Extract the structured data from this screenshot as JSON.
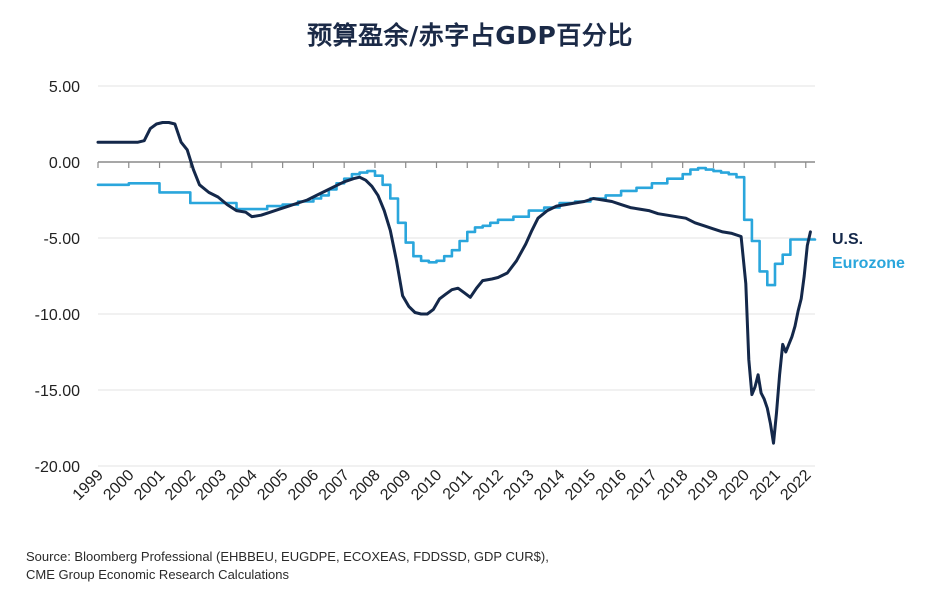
{
  "title": "预算盈余/赤字占GDP百分比",
  "source_lines": [
    "Source: Bloomberg Professional (EHBBEU, EUGDPE, ECOXEAS, FDDSSD, GDP CUR$),",
    "CME Group Economic Research Calculations"
  ],
  "colors": {
    "us": "#14284a",
    "eurozone": "#2aa6dc",
    "grid": "#e3e3e3",
    "zero_line": "#8a8a8a",
    "title": "#1b2a47"
  },
  "chart_data": {
    "type": "line",
    "title": "预算盈余/赤字占GDP百分比",
    "xlabel": "",
    "ylabel": "",
    "xlim": [
      1999,
      2022.3
    ],
    "ylim": [
      -20,
      5
    ],
    "grid": true,
    "legend": "end-of-line labels, right",
    "y_ticks": [
      5,
      0,
      -5,
      -10,
      -15,
      -20
    ],
    "y_tick_labels": [
      "5.00",
      "0.00",
      "-5.00",
      "-10.00",
      "-15.00",
      "-20.00"
    ],
    "x_ticks": [
      1999,
      2000,
      2001,
      2002,
      2003,
      2004,
      2005,
      2006,
      2007,
      2008,
      2009,
      2010,
      2011,
      2012,
      2013,
      2014,
      2015,
      2016,
      2017,
      2018,
      2019,
      2020,
      2021,
      2022
    ],
    "x_tick_labels": [
      "1999",
      "2000",
      "2001",
      "2002",
      "2003",
      "2004",
      "2005",
      "2006",
      "2007",
      "2008",
      "2009",
      "2010",
      "2011",
      "2012",
      "2013",
      "2014",
      "2015",
      "2016",
      "2017",
      "2018",
      "2019",
      "2020",
      "2021",
      "2022"
    ],
    "series": [
      {
        "name": "U.S.",
        "style": "line",
        "x": [
          1999.0,
          1999.5,
          1999.9,
          2000.1,
          2000.3,
          2000.5,
          2000.7,
          2000.9,
          2001.1,
          2001.3,
          2001.5,
          2001.7,
          2001.9,
          2002.1,
          2002.3,
          2002.6,
          2002.9,
          2003.2,
          2003.5,
          2003.8,
          2004.0,
          2004.3,
          2004.6,
          2004.9,
          2005.2,
          2005.5,
          2005.8,
          2006.1,
          2006.4,
          2006.7,
          2007.0,
          2007.3,
          2007.5,
          2007.7,
          2007.9,
          2008.1,
          2008.3,
          2008.5,
          2008.7,
          2008.9,
          2009.1,
          2009.3,
          2009.5,
          2009.7,
          2009.9,
          2010.1,
          2010.3,
          2010.5,
          2010.7,
          2010.9,
          2011.1,
          2011.3,
          2011.5,
          2011.8,
          2012.0,
          2012.3,
          2012.6,
          2012.9,
          2013.1,
          2013.3,
          2013.6,
          2013.9,
          2014.2,
          2014.5,
          2014.8,
          2015.1,
          2015.4,
          2015.7,
          2016.0,
          2016.3,
          2016.6,
          2016.9,
          2017.2,
          2017.5,
          2017.8,
          2018.1,
          2018.4,
          2018.7,
          2019.0,
          2019.3,
          2019.6,
          2019.9,
          2020.05,
          2020.15,
          2020.25,
          2020.35,
          2020.45,
          2020.55,
          2020.65,
          2020.75,
          2020.85,
          2020.95,
          2021.05,
          2021.15,
          2021.25,
          2021.35,
          2021.45,
          2021.55,
          2021.65,
          2021.75,
          2021.85,
          2021.95,
          2022.05,
          2022.15
        ],
        "values": [
          1.3,
          1.3,
          1.3,
          1.3,
          1.3,
          1.4,
          2.2,
          2.5,
          2.6,
          2.6,
          2.5,
          1.3,
          0.8,
          -0.5,
          -1.5,
          -2.0,
          -2.3,
          -2.8,
          -3.2,
          -3.3,
          -3.6,
          -3.5,
          -3.3,
          -3.1,
          -2.9,
          -2.7,
          -2.5,
          -2.2,
          -1.9,
          -1.6,
          -1.3,
          -1.1,
          -1.0,
          -1.2,
          -1.6,
          -2.2,
          -3.2,
          -4.5,
          -6.5,
          -8.8,
          -9.5,
          -9.9,
          -10.0,
          -10.0,
          -9.7,
          -9.0,
          -8.7,
          -8.4,
          -8.3,
          -8.6,
          -8.9,
          -8.3,
          -7.8,
          -7.7,
          -7.6,
          -7.3,
          -6.5,
          -5.4,
          -4.5,
          -3.7,
          -3.2,
          -2.9,
          -2.8,
          -2.7,
          -2.6,
          -2.4,
          -2.5,
          -2.6,
          -2.8,
          -3.0,
          -3.1,
          -3.2,
          -3.4,
          -3.5,
          -3.6,
          -3.7,
          -4.0,
          -4.2,
          -4.4,
          -4.6,
          -4.7,
          -4.9,
          -8.0,
          -13.0,
          -15.3,
          -14.8,
          -14.0,
          -15.2,
          -15.6,
          -16.2,
          -17.2,
          -18.5,
          -16.5,
          -14.0,
          -12.0,
          -12.5,
          -12.0,
          -11.5,
          -10.8,
          -9.8,
          -9.0,
          -7.5,
          -5.5,
          -4.6
        ]
      },
      {
        "name": "Eurozone",
        "style": "step",
        "x": [
          1999.0,
          2000.0,
          2001.0,
          2002.0,
          2003.0,
          2003.5,
          2004.0,
          2004.5,
          2005.0,
          2005.5,
          2006.0,
          2006.25,
          2006.5,
          2006.75,
          2007.0,
          2007.25,
          2007.5,
          2007.75,
          2008.0,
          2008.25,
          2008.5,
          2008.75,
          2009.0,
          2009.25,
          2009.5,
          2009.75,
          2010.0,
          2010.25,
          2010.5,
          2010.75,
          2011.0,
          2011.25,
          2011.5,
          2011.75,
          2012.0,
          2012.5,
          2013.0,
          2013.5,
          2014.0,
          2014.5,
          2015.0,
          2015.5,
          2016.0,
          2016.5,
          2017.0,
          2017.5,
          2018.0,
          2018.25,
          2018.5,
          2018.75,
          2019.0,
          2019.25,
          2019.5,
          2019.75,
          2020.0,
          2020.25,
          2020.5,
          2020.75,
          2021.0,
          2021.25,
          2021.5,
          2021.75,
          2022.0
        ],
        "values": [
          -1.5,
          -1.4,
          -2.0,
          -2.7,
          -2.7,
          -3.1,
          -3.1,
          -2.9,
          -2.8,
          -2.6,
          -2.4,
          -2.2,
          -1.8,
          -1.4,
          -1.1,
          -0.8,
          -0.7,
          -0.6,
          -0.9,
          -1.5,
          -2.4,
          -4.0,
          -5.3,
          -6.2,
          -6.5,
          -6.6,
          -6.5,
          -6.2,
          -5.8,
          -5.2,
          -4.6,
          -4.3,
          -4.2,
          -4.0,
          -3.8,
          -3.6,
          -3.2,
          -3.0,
          -2.7,
          -2.6,
          -2.4,
          -2.2,
          -1.9,
          -1.7,
          -1.4,
          -1.1,
          -0.8,
          -0.5,
          -0.4,
          -0.5,
          -0.6,
          -0.7,
          -0.8,
          -1.0,
          -3.8,
          -5.2,
          -7.2,
          -8.1,
          -6.7,
          -6.1,
          -5.1,
          -5.1,
          -5.1
        ]
      }
    ]
  }
}
